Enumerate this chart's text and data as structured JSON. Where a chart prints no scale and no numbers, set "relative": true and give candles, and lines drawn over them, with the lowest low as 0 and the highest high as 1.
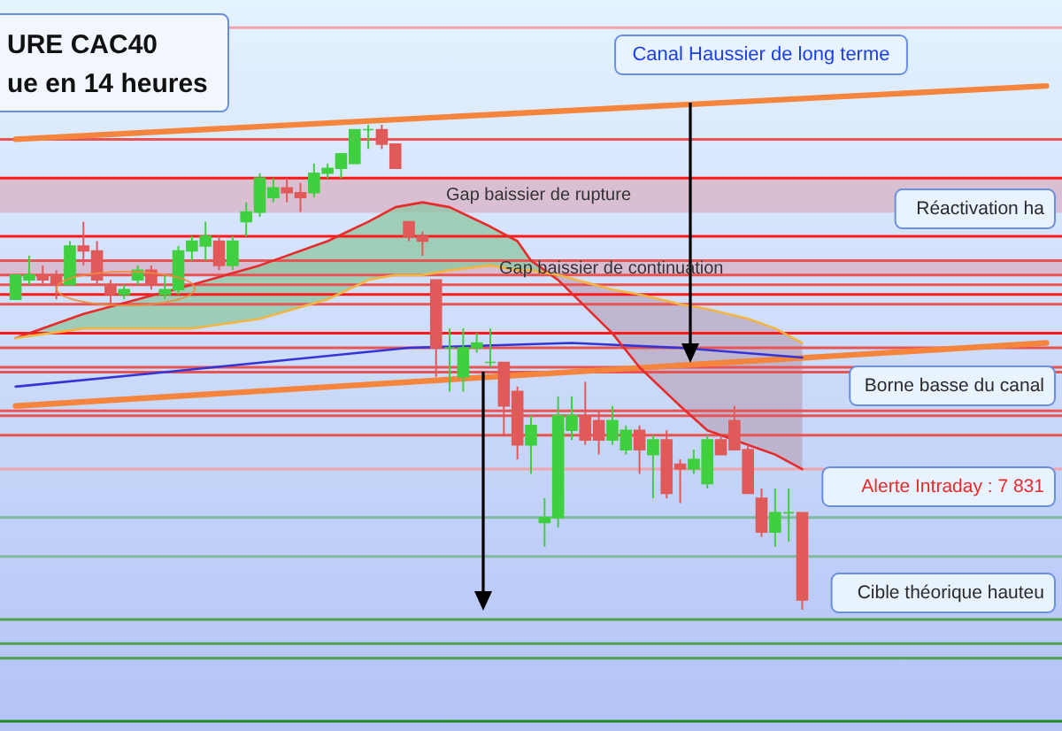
{
  "chart_data": {
    "type": "candlestick",
    "title": "URE CAC40",
    "subtitle": "ue en 14 heures",
    "relative": true,
    "tick_labels": false,
    "categories": [
      null,
      null,
      null,
      null,
      null,
      null,
      null,
      null,
      null,
      null,
      null,
      null,
      null,
      null,
      null,
      null,
      null,
      null,
      null,
      null,
      null,
      null,
      null,
      null,
      null,
      null,
      null,
      null,
      null,
      null,
      null,
      null,
      null,
      null,
      null,
      null,
      null,
      null,
      null,
      null,
      null,
      null,
      null,
      null,
      null,
      null,
      null,
      null,
      null,
      null,
      null,
      null,
      null,
      null,
      null,
      null,
      null,
      null,
      null,
      null,
      null,
      null,
      null,
      null,
      null,
      null,
      null,
      null,
      null,
      null,
      null,
      null,
      null,
      null,
      null,
      null,
      null
    ],
    "ohlc": [
      [
        0.64,
        0.69,
        0.64,
        0.69
      ],
      [
        0.68,
        0.73,
        0.67,
        0.69
      ],
      [
        0.69,
        0.71,
        0.67,
        0.68
      ],
      [
        0.69,
        0.7,
        0.64,
        0.67
      ],
      [
        0.67,
        0.76,
        0.67,
        0.75
      ],
      [
        0.75,
        0.8,
        0.71,
        0.74
      ],
      [
        0.74,
        0.76,
        0.67,
        0.68
      ],
      [
        0.67,
        0.68,
        0.63,
        0.65
      ],
      [
        0.65,
        0.67,
        0.64,
        0.66
      ],
      [
        0.68,
        0.71,
        0.67,
        0.7
      ],
      [
        0.7,
        0.71,
        0.66,
        0.67
      ],
      [
        0.65,
        0.69,
        0.64,
        0.66
      ],
      [
        0.66,
        0.75,
        0.65,
        0.74
      ],
      [
        0.74,
        0.77,
        0.72,
        0.76
      ],
      [
        0.75,
        0.8,
        0.72,
        0.77
      ],
      [
        0.76,
        0.77,
        0.7,
        0.71
      ],
      [
        0.71,
        0.77,
        0.7,
        0.76
      ],
      [
        0.8,
        0.84,
        0.77,
        0.82
      ],
      [
        0.82,
        0.9,
        0.81,
        0.89
      ],
      [
        0.85,
        0.89,
        0.84,
        0.87
      ],
      [
        0.87,
        0.89,
        0.84,
        0.86
      ],
      [
        0.86,
        0.88,
        0.82,
        0.85
      ],
      [
        0.86,
        0.92,
        0.85,
        0.9
      ],
      [
        0.9,
        0.92,
        0.89,
        0.91
      ],
      [
        0.91,
        0.94,
        0.89,
        0.94
      ],
      [
        0.92,
        0.99,
        0.92,
        0.99
      ],
      [
        0.99,
        1.0,
        0.95,
        0.99
      ],
      [
        0.99,
        1.0,
        0.95,
        0.96
      ],
      [
        0.96,
        0.96,
        0.91,
        0.91
      ],
      [
        0.8,
        0.8,
        0.76,
        0.77
      ],
      [
        0.77,
        0.78,
        0.73,
        0.76
      ],
      [
        0.68,
        0.68,
        0.48,
        0.54
      ],
      [
        0.54,
        0.58,
        0.45,
        0.54
      ],
      [
        0.48,
        0.58,
        0.45,
        0.54
      ],
      [
        0.54,
        0.57,
        0.53,
        0.55
      ],
      [
        0.51,
        0.58,
        0.5,
        0.51
      ],
      [
        0.51,
        0.51,
        0.36,
        0.42
      ],
      [
        0.45,
        0.46,
        0.31,
        0.34
      ],
      [
        0.34,
        0.4,
        0.28,
        0.38
      ],
      [
        0.18,
        0.23,
        0.13,
        0.19
      ],
      [
        0.19,
        0.44,
        0.17,
        0.4
      ],
      [
        0.37,
        0.44,
        0.35,
        0.4
      ],
      [
        0.4,
        0.47,
        0.34,
        0.35
      ],
      [
        0.39,
        0.41,
        0.32,
        0.35
      ],
      [
        0.35,
        0.42,
        0.34,
        0.39
      ],
      [
        0.33,
        0.38,
        0.32,
        0.37
      ],
      [
        0.37,
        0.38,
        0.28,
        0.33
      ],
      [
        0.32,
        0.36,
        0.23,
        0.35
      ],
      [
        0.35,
        0.37,
        0.23,
        0.24
      ],
      [
        0.3,
        0.31,
        0.22,
        0.29
      ],
      [
        0.29,
        0.33,
        0.28,
        0.31
      ],
      [
        0.26,
        0.36,
        0.25,
        0.35
      ],
      [
        0.35,
        0.36,
        0.32,
        0.32
      ],
      [
        0.39,
        0.42,
        0.33,
        0.33
      ],
      [
        0.33,
        0.34,
        0.24,
        0.24
      ],
      [
        0.23,
        0.25,
        0.15,
        0.16
      ],
      [
        0.16,
        0.25,
        0.13,
        0.2
      ],
      [
        0.2,
        0.25,
        0.14,
        0.2
      ],
      [
        0.2,
        0.2,
        0.0,
        0.02
      ],
      null,
      null,
      null,
      null,
      null,
      null,
      null,
      null,
      null,
      null,
      null,
      null,
      null,
      null,
      null,
      null,
      null,
      null
    ],
    "colors": [
      "#3fcf3f",
      "#3fcf3f",
      "#e05a5a",
      "#e05a5a",
      "#3fcf3f",
      "#e05a5a",
      "#e05a5a",
      "#e05a5a",
      "#3fcf3f",
      "#3fcf3f",
      "#e05a5a",
      "#3fcf3f",
      "#3fcf3f",
      "#3fcf3f",
      "#3fcf3f",
      "#e05a5a",
      "#3fcf3f",
      "#3fcf3f",
      "#3fcf3f",
      "#3fcf3f",
      "#e05a5a",
      "#e05a5a",
      "#3fcf3f",
      "#3fcf3f",
      "#3fcf3f",
      "#3fcf3f",
      "#3fcf3f",
      "#e05a5a",
      "#e05a5a",
      "#e05a5a",
      "#e05a5a",
      "#e05a5a",
      "#3fcf3f",
      "#3fcf3f",
      "#3fcf3f",
      "#3fcf3f",
      "#e05a5a",
      "#e05a5a",
      "#3fcf3f",
      "#3fcf3f",
      "#3fcf3f",
      "#3fcf3f",
      "#e05a5a",
      "#e05a5a",
      "#3fcf3f",
      "#3fcf3f",
      "#e05a5a",
      "#3fcf3f",
      "#e05a5a",
      "#e05a5a",
      "#3fcf3f",
      "#3fcf3f",
      "#e05a5a",
      "#e05a5a",
      "#e05a5a",
      "#e05a5a",
      "#3fcf3f",
      "#3fcf3f",
      "#e05a5a",
      null,
      null,
      null,
      null,
      null,
      null,
      null,
      null,
      null,
      null,
      null,
      null,
      null,
      null,
      null,
      null,
      null,
      null
    ],
    "series": [
      {
        "type": "line",
        "color": "#f5843c",
        "values": [
          0.97,
          null,
          null,
          null,
          null,
          null,
          null,
          null,
          null,
          null,
          null,
          null,
          null,
          null,
          null,
          null,
          null,
          null,
          null,
          null,
          null,
          null,
          null,
          null,
          null,
          null,
          null,
          null,
          null,
          null,
          null,
          null,
          null,
          null,
          null,
          null,
          null,
          null,
          null,
          null,
          null,
          null,
          null,
          null,
          null,
          null,
          null,
          null,
          null,
          null,
          null,
          null,
          null,
          null,
          null,
          null,
          null,
          null,
          null,
          null,
          null,
          null,
          null,
          null,
          null,
          null,
          null,
          null,
          null,
          null,
          null,
          null,
          null,
          null,
          null,
          null,
          1.08
        ]
      },
      {
        "type": "line",
        "color": "#f5843c",
        "values": [
          0.42,
          null,
          null,
          null,
          null,
          null,
          null,
          null,
          null,
          null,
          null,
          null,
          null,
          null,
          null,
          null,
          null,
          null,
          null,
          null,
          null,
          null,
          null,
          null,
          null,
          null,
          null,
          null,
          null,
          null,
          null,
          null,
          null,
          null,
          null,
          null,
          null,
          null,
          null,
          null,
          null,
          null,
          null,
          null,
          null,
          null,
          null,
          null,
          null,
          null,
          null,
          null,
          null,
          null,
          null,
          null,
          null,
          null,
          null,
          null,
          null,
          null,
          null,
          null,
          null,
          null,
          null,
          null,
          null,
          null,
          null,
          null,
          null,
          null,
          null,
          null,
          0.55
        ]
      },
      {
        "type": "line",
        "color": "#3434d6",
        "values": [
          0.46,
          null,
          null,
          null,
          null,
          null,
          null,
          null,
          null,
          null,
          null,
          0.49,
          null,
          null,
          null,
          null,
          null,
          null,
          null,
          null,
          null,
          null,
          null,
          null,
          null,
          null,
          null,
          null,
          null,
          0.54,
          null,
          null,
          null,
          null,
          null,
          null,
          null,
          null,
          null,
          null,
          null,
          0.55,
          null,
          null,
          null,
          null,
          null,
          null,
          null,
          0.54,
          null,
          null,
          null,
          null,
          null,
          null,
          null,
          null,
          0.52,
          null,
          null,
          null,
          null,
          null,
          null,
          null,
          null,
          null,
          null,
          null,
          null,
          null,
          null,
          null,
          null,
          null,
          null
        ]
      },
      {
        "type": "line",
        "color": "#e82a2a",
        "values": [
          0.56,
          null,
          null,
          null,
          null,
          0.61,
          null,
          null,
          null,
          null,
          null,
          null,
          null,
          0.67,
          null,
          null,
          null,
          null,
          0.71,
          null,
          null,
          null,
          null,
          0.76,
          null,
          null,
          0.8,
          null,
          0.83,
          null,
          0.84,
          null,
          0.83,
          null,
          null,
          0.79,
          null,
          0.76,
          0.72,
          null,
          0.68,
          null,
          null,
          null,
          0.57,
          null,
          0.5,
          null,
          null,
          0.42,
          null,
          0.37,
          null,
          null,
          0.34,
          null,
          0.32,
          null,
          0.29,
          null,
          null,
          null,
          null,
          null,
          null,
          null,
          null,
          null,
          null,
          null,
          null,
          null,
          null,
          null,
          null,
          null,
          null
        ],
        "lower": [
          0.56,
          null,
          null,
          null,
          null,
          0.58,
          null,
          null,
          null,
          null,
          null,
          null,
          null,
          0.58,
          null,
          null,
          null,
          null,
          0.6,
          null,
          null,
          null,
          null,
          0.64,
          null,
          null,
          0.68,
          null,
          0.69,
          null,
          0.69,
          null,
          0.7,
          null,
          null,
          0.71,
          null,
          0.7,
          0.7,
          null,
          0.69,
          null,
          null,
          null,
          null,
          null,
          null,
          null,
          null,
          null,
          null,
          null,
          null,
          null,
          null,
          null,
          null,
          null,
          null,
          null,
          null,
          null,
          null,
          null,
          null,
          null,
          null,
          null,
          null,
          null,
          null,
          null,
          null,
          null,
          null,
          null,
          null
        ],
        "upper": [
          0.56,
          null,
          null,
          null,
          null,
          0.61,
          null,
          null,
          null,
          null,
          null,
          null,
          null,
          0.67,
          null,
          null,
          null,
          null,
          0.71,
          null,
          null,
          null,
          null,
          0.76,
          null,
          null,
          0.8,
          null,
          0.83,
          null,
          0.84,
          null,
          0.83,
          null,
          null,
          0.79,
          null,
          0.76,
          0.72,
          null,
          0.68,
          null,
          null,
          null,
          null,
          null,
          null,
          null,
          null,
          null,
          null,
          null,
          null,
          null,
          null,
          null,
          null,
          null,
          null,
          null,
          null,
          null,
          null,
          null,
          null,
          null,
          null,
          null,
          null,
          null,
          null,
          null,
          null,
          null,
          null,
          null,
          null
        ]
      },
      {
        "type": "line",
        "color": "#f2b544",
        "values": [
          0.56,
          null,
          null,
          null,
          null,
          0.58,
          null,
          null,
          null,
          null,
          null,
          null,
          null,
          0.58,
          null,
          null,
          null,
          null,
          0.6,
          null,
          null,
          null,
          null,
          0.64,
          null,
          null,
          0.68,
          null,
          0.69,
          null,
          0.69,
          null,
          0.7,
          null,
          null,
          0.71,
          null,
          0.7,
          0.7,
          null,
          0.69,
          null,
          null,
          null,
          0.66,
          null,
          0.65,
          null,
          null,
          0.63,
          null,
          0.62,
          null,
          null,
          0.6,
          null,
          0.58,
          null,
          0.55,
          null,
          null,
          null,
          null,
          null,
          null,
          null,
          null,
          null,
          null,
          null,
          null,
          null,
          null,
          null,
          null,
          null,
          null
        ],
        "lower": [
          null,
          null,
          null,
          null,
          null,
          null,
          null,
          null,
          null,
          null,
          null,
          null,
          null,
          null,
          null,
          null,
          null,
          null,
          null,
          null,
          null,
          null,
          null,
          null,
          null,
          null,
          null,
          null,
          null,
          null,
          null,
          null,
          null,
          null,
          null,
          null,
          null,
          null,
          null,
          null,
          0.68,
          null,
          null,
          null,
          0.57,
          null,
          0.5,
          null,
          null,
          0.42,
          null,
          0.37,
          null,
          null,
          0.34,
          null,
          0.32,
          null,
          0.29,
          null,
          null,
          null,
          null,
          null,
          null,
          null,
          null,
          null,
          null,
          null,
          null,
          null,
          null,
          null,
          null,
          null,
          null
        ],
        "upper": [
          null,
          null,
          null,
          null,
          null,
          null,
          null,
          null,
          null,
          null,
          null,
          null,
          null,
          null,
          null,
          null,
          null,
          null,
          null,
          null,
          null,
          null,
          null,
          null,
          null,
          null,
          null,
          null,
          null,
          null,
          null,
          null,
          null,
          null,
          null,
          null,
          null,
          null,
          null,
          null,
          0.69,
          null,
          null,
          null,
          0.66,
          null,
          0.65,
          null,
          null,
          0.63,
          null,
          0.62,
          null,
          null,
          0.6,
          null,
          0.58,
          null,
          0.55,
          null,
          null,
          null,
          null,
          null,
          null,
          null,
          null,
          null,
          null,
          null,
          null,
          null,
          null,
          null,
          null,
          null,
          null
        ]
      }
    ],
    "ref_lines": [
      {
        "axis": "y",
        "value": 1.2,
        "color": "#f2a4ac"
      },
      {
        "axis": "y",
        "value": 0.97,
        "color": "#e85454"
      },
      {
        "axis": "y",
        "value": 0.89,
        "color": "#ff1a1a"
      },
      {
        "axis": "y",
        "value": 0.77,
        "color": "#ff1a1a"
      },
      {
        "axis": "y",
        "value": 0.72,
        "color": "#e85454"
      },
      {
        "axis": "y",
        "value": 0.69,
        "color": "#e85454"
      },
      {
        "axis": "y",
        "value": 0.67,
        "color": "#e85454"
      },
      {
        "axis": "y",
        "value": 0.65,
        "color": "#ff1a1a"
      },
      {
        "axis": "y",
        "value": 0.63,
        "color": "#e85454"
      },
      {
        "axis": "y",
        "value": 0.57,
        "color": "#ff1a1a"
      },
      {
        "axis": "y",
        "value": 0.54,
        "color": "#e85454"
      },
      {
        "axis": "y",
        "value": 0.5,
        "color": "#e85454"
      },
      {
        "axis": "y",
        "value": 0.49,
        "color": "#e85454"
      },
      {
        "axis": "y",
        "value": 0.41,
        "color": "#e85454"
      },
      {
        "axis": "y",
        "value": 0.4,
        "color": "#e85454"
      },
      {
        "axis": "y",
        "value": 0.36,
        "color": "#e85454"
      },
      {
        "axis": "y",
        "value": 0.29,
        "color": "#f2a4ac"
      },
      {
        "axis": "y",
        "value": 0.19,
        "color": "#80b8a0"
      },
      {
        "axis": "y",
        "value": 0.11,
        "color": "#80b8a0"
      },
      {
        "axis": "y",
        "value": -0.02,
        "color": "#50a050"
      },
      {
        "axis": "y",
        "value": -0.07,
        "color": "#50a050"
      },
      {
        "axis": "y",
        "value": -0.1,
        "color": "#50a050"
      },
      {
        "axis": "y",
        "value": -0.23,
        "color": "#208a20"
      }
    ],
    "bands": [
      {
        "axis": "y",
        "from": 0.82,
        "to": 0.89,
        "label": "Gap baissier de rupture",
        "color": "#dca6b8"
      },
      {
        "axis": "y",
        "from": 0.69,
        "to": 0.72,
        "label": "Gap baissier de continuation",
        "color": "#dca6b8"
      }
    ],
    "annotations": [
      "Canal Haussier de long terme",
      "Réactivation ha",
      "Borne basse du canal",
      "Alerte Intraday : 7 831",
      "Cible théorique hauteu"
    ]
  }
}
